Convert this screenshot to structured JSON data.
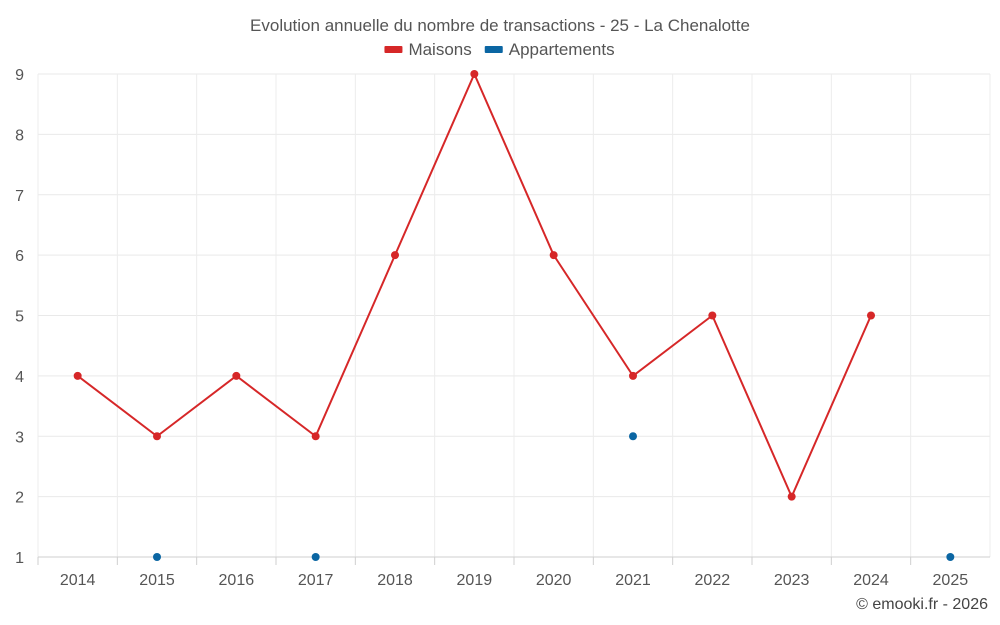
{
  "chart_data": {
    "type": "line",
    "title": "Evolution annuelle du nombre de transactions - 25 - La Chenalotte",
    "xlabel": "",
    "ylabel": "",
    "categories": [
      "2014",
      "2015",
      "2016",
      "2017",
      "2018",
      "2019",
      "2020",
      "2021",
      "2022",
      "2023",
      "2024",
      "2025"
    ],
    "ylim": [
      1,
      9
    ],
    "yticks": [
      1,
      2,
      3,
      4,
      5,
      6,
      7,
      8,
      9
    ],
    "grid": true,
    "legend_position": "top-center",
    "series": [
      {
        "name": "Maisons",
        "color": "#d62728",
        "values": [
          4,
          3,
          4,
          3,
          6,
          9,
          6,
          4,
          5,
          2,
          5,
          null
        ]
      },
      {
        "name": "Appartements",
        "color": "#0b66a3",
        "values": [
          null,
          1,
          null,
          1,
          null,
          null,
          null,
          3,
          null,
          null,
          null,
          1
        ]
      }
    ]
  },
  "credit": "© emooki.fr - 2026"
}
